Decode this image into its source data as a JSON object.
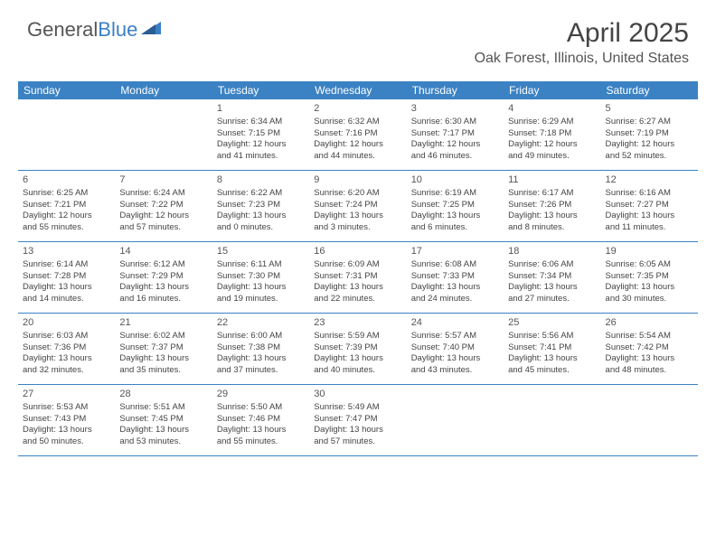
{
  "brand": {
    "name_part1": "General",
    "name_part2": "Blue",
    "logo_color": "#3b7fc4"
  },
  "header": {
    "title": "April 2025",
    "location": "Oak Forest, Illinois, United States"
  },
  "colors": {
    "header_bg": "#3b82c4",
    "header_text": "#ffffff",
    "border": "#3b82c4",
    "text": "#444444",
    "background": "#ffffff"
  },
  "days_of_week": [
    "Sunday",
    "Monday",
    "Tuesday",
    "Wednesday",
    "Thursday",
    "Friday",
    "Saturday"
  ],
  "weeks": [
    [
      {
        "empty": true
      },
      {
        "empty": true
      },
      {
        "day": "1",
        "sunrise": "Sunrise: 6:34 AM",
        "sunset": "Sunset: 7:15 PM",
        "daylight1": "Daylight: 12 hours",
        "daylight2": "and 41 minutes."
      },
      {
        "day": "2",
        "sunrise": "Sunrise: 6:32 AM",
        "sunset": "Sunset: 7:16 PM",
        "daylight1": "Daylight: 12 hours",
        "daylight2": "and 44 minutes."
      },
      {
        "day": "3",
        "sunrise": "Sunrise: 6:30 AM",
        "sunset": "Sunset: 7:17 PM",
        "daylight1": "Daylight: 12 hours",
        "daylight2": "and 46 minutes."
      },
      {
        "day": "4",
        "sunrise": "Sunrise: 6:29 AM",
        "sunset": "Sunset: 7:18 PM",
        "daylight1": "Daylight: 12 hours",
        "daylight2": "and 49 minutes."
      },
      {
        "day": "5",
        "sunrise": "Sunrise: 6:27 AM",
        "sunset": "Sunset: 7:19 PM",
        "daylight1": "Daylight: 12 hours",
        "daylight2": "and 52 minutes."
      }
    ],
    [
      {
        "day": "6",
        "sunrise": "Sunrise: 6:25 AM",
        "sunset": "Sunset: 7:21 PM",
        "daylight1": "Daylight: 12 hours",
        "daylight2": "and 55 minutes."
      },
      {
        "day": "7",
        "sunrise": "Sunrise: 6:24 AM",
        "sunset": "Sunset: 7:22 PM",
        "daylight1": "Daylight: 12 hours",
        "daylight2": "and 57 minutes."
      },
      {
        "day": "8",
        "sunrise": "Sunrise: 6:22 AM",
        "sunset": "Sunset: 7:23 PM",
        "daylight1": "Daylight: 13 hours",
        "daylight2": "and 0 minutes."
      },
      {
        "day": "9",
        "sunrise": "Sunrise: 6:20 AM",
        "sunset": "Sunset: 7:24 PM",
        "daylight1": "Daylight: 13 hours",
        "daylight2": "and 3 minutes."
      },
      {
        "day": "10",
        "sunrise": "Sunrise: 6:19 AM",
        "sunset": "Sunset: 7:25 PM",
        "daylight1": "Daylight: 13 hours",
        "daylight2": "and 6 minutes."
      },
      {
        "day": "11",
        "sunrise": "Sunrise: 6:17 AM",
        "sunset": "Sunset: 7:26 PM",
        "daylight1": "Daylight: 13 hours",
        "daylight2": "and 8 minutes."
      },
      {
        "day": "12",
        "sunrise": "Sunrise: 6:16 AM",
        "sunset": "Sunset: 7:27 PM",
        "daylight1": "Daylight: 13 hours",
        "daylight2": "and 11 minutes."
      }
    ],
    [
      {
        "day": "13",
        "sunrise": "Sunrise: 6:14 AM",
        "sunset": "Sunset: 7:28 PM",
        "daylight1": "Daylight: 13 hours",
        "daylight2": "and 14 minutes."
      },
      {
        "day": "14",
        "sunrise": "Sunrise: 6:12 AM",
        "sunset": "Sunset: 7:29 PM",
        "daylight1": "Daylight: 13 hours",
        "daylight2": "and 16 minutes."
      },
      {
        "day": "15",
        "sunrise": "Sunrise: 6:11 AM",
        "sunset": "Sunset: 7:30 PM",
        "daylight1": "Daylight: 13 hours",
        "daylight2": "and 19 minutes."
      },
      {
        "day": "16",
        "sunrise": "Sunrise: 6:09 AM",
        "sunset": "Sunset: 7:31 PM",
        "daylight1": "Daylight: 13 hours",
        "daylight2": "and 22 minutes."
      },
      {
        "day": "17",
        "sunrise": "Sunrise: 6:08 AM",
        "sunset": "Sunset: 7:33 PM",
        "daylight1": "Daylight: 13 hours",
        "daylight2": "and 24 minutes."
      },
      {
        "day": "18",
        "sunrise": "Sunrise: 6:06 AM",
        "sunset": "Sunset: 7:34 PM",
        "daylight1": "Daylight: 13 hours",
        "daylight2": "and 27 minutes."
      },
      {
        "day": "19",
        "sunrise": "Sunrise: 6:05 AM",
        "sunset": "Sunset: 7:35 PM",
        "daylight1": "Daylight: 13 hours",
        "daylight2": "and 30 minutes."
      }
    ],
    [
      {
        "day": "20",
        "sunrise": "Sunrise: 6:03 AM",
        "sunset": "Sunset: 7:36 PM",
        "daylight1": "Daylight: 13 hours",
        "daylight2": "and 32 minutes."
      },
      {
        "day": "21",
        "sunrise": "Sunrise: 6:02 AM",
        "sunset": "Sunset: 7:37 PM",
        "daylight1": "Daylight: 13 hours",
        "daylight2": "and 35 minutes."
      },
      {
        "day": "22",
        "sunrise": "Sunrise: 6:00 AM",
        "sunset": "Sunset: 7:38 PM",
        "daylight1": "Daylight: 13 hours",
        "daylight2": "and 37 minutes."
      },
      {
        "day": "23",
        "sunrise": "Sunrise: 5:59 AM",
        "sunset": "Sunset: 7:39 PM",
        "daylight1": "Daylight: 13 hours",
        "daylight2": "and 40 minutes."
      },
      {
        "day": "24",
        "sunrise": "Sunrise: 5:57 AM",
        "sunset": "Sunset: 7:40 PM",
        "daylight1": "Daylight: 13 hours",
        "daylight2": "and 43 minutes."
      },
      {
        "day": "25",
        "sunrise": "Sunrise: 5:56 AM",
        "sunset": "Sunset: 7:41 PM",
        "daylight1": "Daylight: 13 hours",
        "daylight2": "and 45 minutes."
      },
      {
        "day": "26",
        "sunrise": "Sunrise: 5:54 AM",
        "sunset": "Sunset: 7:42 PM",
        "daylight1": "Daylight: 13 hours",
        "daylight2": "and 48 minutes."
      }
    ],
    [
      {
        "day": "27",
        "sunrise": "Sunrise: 5:53 AM",
        "sunset": "Sunset: 7:43 PM",
        "daylight1": "Daylight: 13 hours",
        "daylight2": "and 50 minutes."
      },
      {
        "day": "28",
        "sunrise": "Sunrise: 5:51 AM",
        "sunset": "Sunset: 7:45 PM",
        "daylight1": "Daylight: 13 hours",
        "daylight2": "and 53 minutes."
      },
      {
        "day": "29",
        "sunrise": "Sunrise: 5:50 AM",
        "sunset": "Sunset: 7:46 PM",
        "daylight1": "Daylight: 13 hours",
        "daylight2": "and 55 minutes."
      },
      {
        "day": "30",
        "sunrise": "Sunrise: 5:49 AM",
        "sunset": "Sunset: 7:47 PM",
        "daylight1": "Daylight: 13 hours",
        "daylight2": "and 57 minutes."
      },
      {
        "empty": true
      },
      {
        "empty": true
      },
      {
        "empty": true
      }
    ]
  ]
}
